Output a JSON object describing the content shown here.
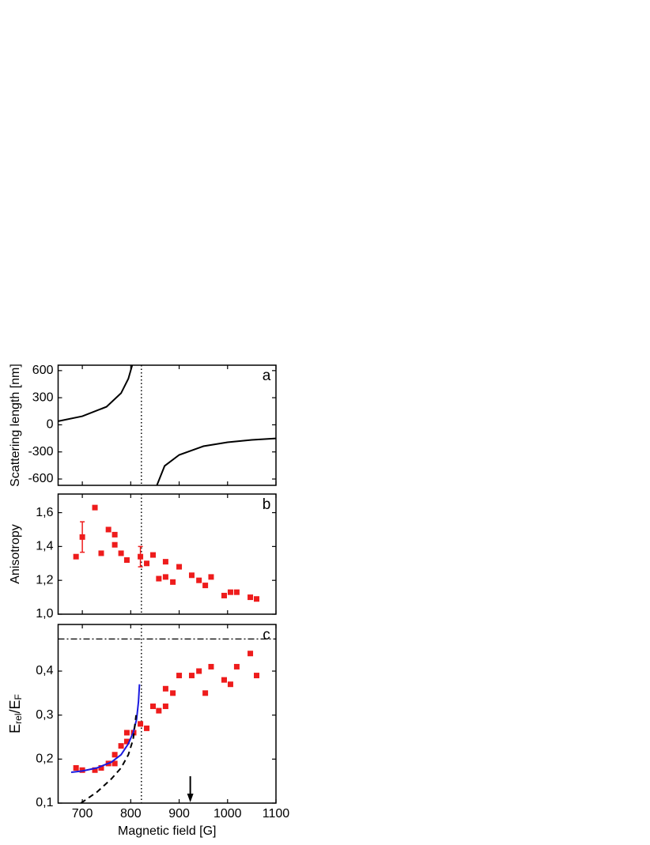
{
  "chart_data": [
    {
      "type": "line",
      "panel_label": "a",
      "ylabel": "Scattering length [nm]",
      "xlim": [
        650,
        1100
      ],
      "ylim": [
        -670,
        660
      ],
      "yticks": [
        600,
        300,
        0,
        -300,
        -600
      ],
      "vline": 822,
      "series": [
        {
          "type": "line",
          "color": "#000000",
          "dash": "solid",
          "x": [
            650,
            700,
            750,
            780,
            795,
            803,
            null,
            854,
            870,
            900,
            950,
            1000,
            1050,
            1100
          ],
          "values": [
            40,
            95,
            200,
            350,
            510,
            660,
            null,
            -670,
            -455,
            -333,
            -237,
            -193,
            -167,
            -150
          ]
        }
      ]
    },
    {
      "type": "scatter",
      "panel_label": "b",
      "ylabel": "Anisotropy",
      "xlim": [
        650,
        1100
      ],
      "ylim": [
        1.0,
        1.71
      ],
      "vline": 822,
      "yticks": [
        {
          "value": 1.0,
          "label": "1,0"
        },
        {
          "value": 1.2,
          "label": "1,2"
        },
        {
          "value": 1.4,
          "label": "1,4"
        },
        {
          "value": 1.6,
          "label": "1,6"
        }
      ],
      "series": [
        {
          "type": "scatter",
          "color": "#ee1c1c",
          "x": [
            687,
            700,
            726,
            739,
            754,
            767,
            767,
            780,
            792,
            820,
            833,
            846,
            858,
            872,
            872,
            887,
            900,
            926,
            941,
            954,
            966,
            993,
            1006,
            1019,
            1047,
            1060
          ],
          "values": [
            1.34,
            1.456,
            1.63,
            1.36,
            1.5,
            1.47,
            1.41,
            1.36,
            1.32,
            1.34,
            1.3,
            1.35,
            1.21,
            1.31,
            1.22,
            1.19,
            1.28,
            1.23,
            1.2,
            1.17,
            1.22,
            1.11,
            1.13,
            1.13,
            1.1,
            1.09
          ],
          "errors": [
            null,
            0.09,
            null,
            null,
            null,
            null,
            null,
            null,
            null,
            0.06,
            null,
            null,
            null,
            null,
            null,
            null,
            null,
            null,
            null,
            null,
            null,
            null,
            null,
            null,
            null,
            null
          ]
        }
      ]
    },
    {
      "type": "scatter",
      "panel_label": "c",
      "ylabel": [
        "E",
        "rel",
        "/E",
        "F"
      ],
      "xlabel": "Magnetic field [G]",
      "xlim": [
        650,
        1100
      ],
      "xticks": [
        700,
        800,
        900,
        1000,
        1100
      ],
      "ylim": [
        0.1,
        0.506
      ],
      "vline": 822,
      "hline": 0.473,
      "arrow": 923,
      "yticks": [
        {
          "value": 0.1,
          "label": "0,1"
        },
        {
          "value": 0.2,
          "label": "0,2"
        },
        {
          "value": 0.3,
          "label": "0,3"
        },
        {
          "value": 0.4,
          "label": "0,4"
        }
      ],
      "series": [
        {
          "type": "scatter",
          "color": "#ee1c1c",
          "x": [
            687,
            700,
            726,
            739,
            754,
            767,
            767,
            780,
            792,
            792,
            806,
            820,
            833,
            846,
            858,
            872,
            872,
            887,
            900,
            926,
            941,
            954,
            966,
            993,
            1006,
            1019,
            1047,
            1060
          ],
          "values": [
            0.18,
            0.175,
            0.175,
            0.18,
            0.19,
            0.21,
            0.19,
            0.23,
            0.26,
            0.24,
            0.26,
            0.28,
            0.27,
            0.32,
            0.31,
            0.36,
            0.32,
            0.35,
            0.39,
            0.39,
            0.4,
            0.35,
            0.41,
            0.38,
            0.37,
            0.41,
            0.44,
            0.39
          ]
        },
        {
          "type": "line",
          "color": "#1a1ae0",
          "dash": "solid",
          "x": [
            677,
            700,
            730,
            760,
            780,
            795,
            805,
            812,
            816,
            818
          ],
          "values": [
            0.17,
            0.173,
            0.18,
            0.193,
            0.21,
            0.235,
            0.26,
            0.29,
            0.33,
            0.37
          ]
        },
        {
          "type": "line",
          "color": "#000000",
          "dash": "dashed",
          "x": [
            697,
            730,
            760,
            780,
            795,
            805,
            811
          ],
          "values": [
            0.1,
            0.125,
            0.155,
            0.18,
            0.21,
            0.245,
            0.3
          ]
        }
      ]
    }
  ]
}
